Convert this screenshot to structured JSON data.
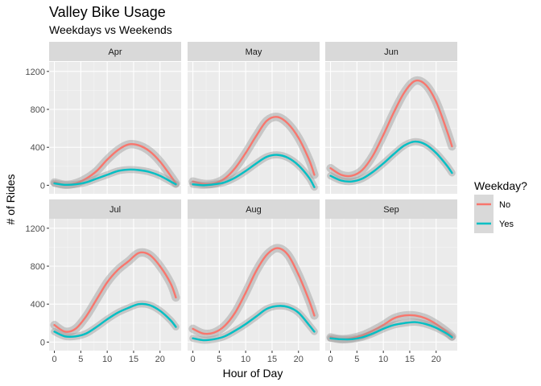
{
  "chart_data": {
    "type": "line",
    "title": "Valley Bike Usage",
    "subtitle": "Weekdays vs Weekends",
    "xlabel": "Hour of Day",
    "ylabel": "# of Rides",
    "xlim": [
      -1,
      24
    ],
    "ylim": [
      -90,
      1300
    ],
    "x_ticks": [
      0,
      5,
      10,
      15,
      20
    ],
    "y_ticks": [
      0,
      400,
      800,
      1200
    ],
    "grid": true,
    "legend": {
      "title": "Weekday?",
      "placement": "right",
      "items": [
        {
          "label": "No",
          "color": "#F8766D"
        },
        {
          "label": "Yes",
          "color": "#00BFC4"
        }
      ]
    },
    "colors": {
      "No": "#F8766D",
      "Yes": "#00BFC4",
      "band": "#999999"
    },
    "x": [
      0,
      2,
      4,
      6,
      8,
      10,
      12,
      14,
      16,
      18,
      20,
      22,
      23
    ],
    "facets": [
      {
        "label": "Apr",
        "series": [
          {
            "name": "No",
            "values": [
              30,
              5,
              20,
              70,
              150,
              270,
              370,
              430,
              420,
              360,
              250,
              100,
              20
            ]
          },
          {
            "name": "Yes",
            "values": [
              20,
              5,
              10,
              30,
              70,
              110,
              150,
              165,
              160,
              140,
              100,
              40,
              10
            ]
          }
        ]
      },
      {
        "label": "May",
        "series": [
          {
            "name": "No",
            "values": [
              40,
              15,
              20,
              70,
              180,
              340,
              520,
              680,
              720,
              650,
              500,
              270,
              110
            ]
          },
          {
            "name": "Yes",
            "values": [
              10,
              0,
              10,
              30,
              80,
              150,
              230,
              300,
              320,
              290,
              210,
              80,
              -20
            ]
          }
        ]
      },
      {
        "label": "Jun",
        "series": [
          {
            "name": "No",
            "values": [
              180,
              110,
              100,
              160,
              310,
              530,
              770,
              980,
              1100,
              1060,
              880,
              580,
              410
            ]
          },
          {
            "name": "Yes",
            "values": [
              100,
              50,
              40,
              70,
              140,
              230,
              330,
              420,
              460,
              430,
              340,
              210,
              130
            ]
          }
        ]
      },
      {
        "label": "Jul",
        "series": [
          {
            "name": "No",
            "values": [
              180,
              110,
              140,
              270,
              450,
              630,
              760,
              850,
              940,
              920,
              800,
              620,
              470
            ]
          },
          {
            "name": "Yes",
            "values": [
              110,
              60,
              60,
              90,
              160,
              240,
              310,
              360,
              400,
              390,
              330,
              230,
              160
            ]
          }
        ]
      },
      {
        "label": "Aug",
        "series": [
          {
            "name": "No",
            "values": [
              140,
              90,
              100,
              170,
              310,
              520,
              750,
              920,
              990,
              920,
              710,
              440,
              280
            ]
          },
          {
            "name": "Yes",
            "values": [
              40,
              20,
              30,
              60,
              120,
              190,
              270,
              350,
              380,
              370,
              310,
              180,
              110
            ]
          }
        ]
      },
      {
        "label": "Sep",
        "series": [
          {
            "name": "No",
            "values": [
              50,
              30,
              40,
              70,
              120,
              180,
              250,
              280,
              280,
              250,
              190,
              110,
              60
            ]
          },
          {
            "name": "Yes",
            "values": [
              40,
              30,
              30,
              50,
              90,
              140,
              180,
              200,
              210,
              190,
              150,
              90,
              50
            ]
          }
        ]
      }
    ]
  }
}
